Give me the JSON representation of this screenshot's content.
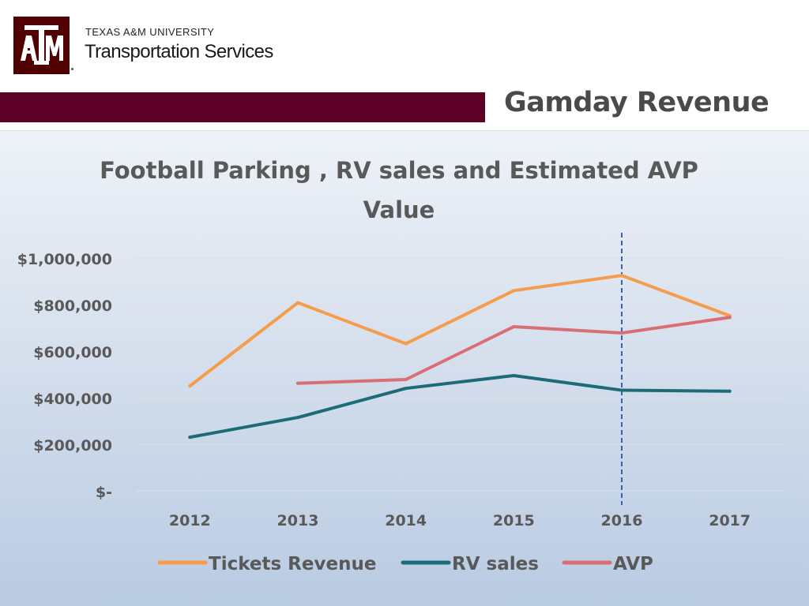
{
  "header": {
    "logo_text": "ATM",
    "university": "TEXAS A&M UNIVERSITY",
    "department": "Transportation Services",
    "slide_title": "Gamday Revenue"
  },
  "colors": {
    "brand_maroon": "#500000",
    "bar_maroon": "#5c0025",
    "tickets": "#f59d4c",
    "rv": "#1e6b78",
    "avp": "#d96f74",
    "marker_line": "#3a5fb5"
  },
  "chart_data": {
    "type": "line",
    "title_line1": "Football Parking , RV sales and Estimated AVP",
    "title_line2": "Value",
    "categories": [
      "2012",
      "2013",
      "2014",
      "2015",
      "2016",
      "2017"
    ],
    "y_ticks": [
      0,
      200000,
      400000,
      600000,
      800000,
      1000000
    ],
    "y_tick_labels": [
      "$-",
      "$200,000",
      "$400,000",
      "$600,000",
      "$800,000",
      "$1,000,000"
    ],
    "ylim": [
      0,
      1000000
    ],
    "grid": true,
    "legend_position": "bottom",
    "reference_line_category": "2016",
    "series": [
      {
        "name": "Tickets Revenue",
        "color_key": "tickets",
        "values": [
          450000,
          808000,
          632000,
          860000,
          925000,
          752000
        ]
      },
      {
        "name": "RV sales",
        "color_key": "rv",
        "values": [
          230000,
          315000,
          440000,
          495000,
          432000,
          428000
        ]
      },
      {
        "name": "AVP",
        "color_key": "avp",
        "values": [
          null,
          462000,
          478000,
          705000,
          678000,
          745000
        ]
      }
    ]
  }
}
